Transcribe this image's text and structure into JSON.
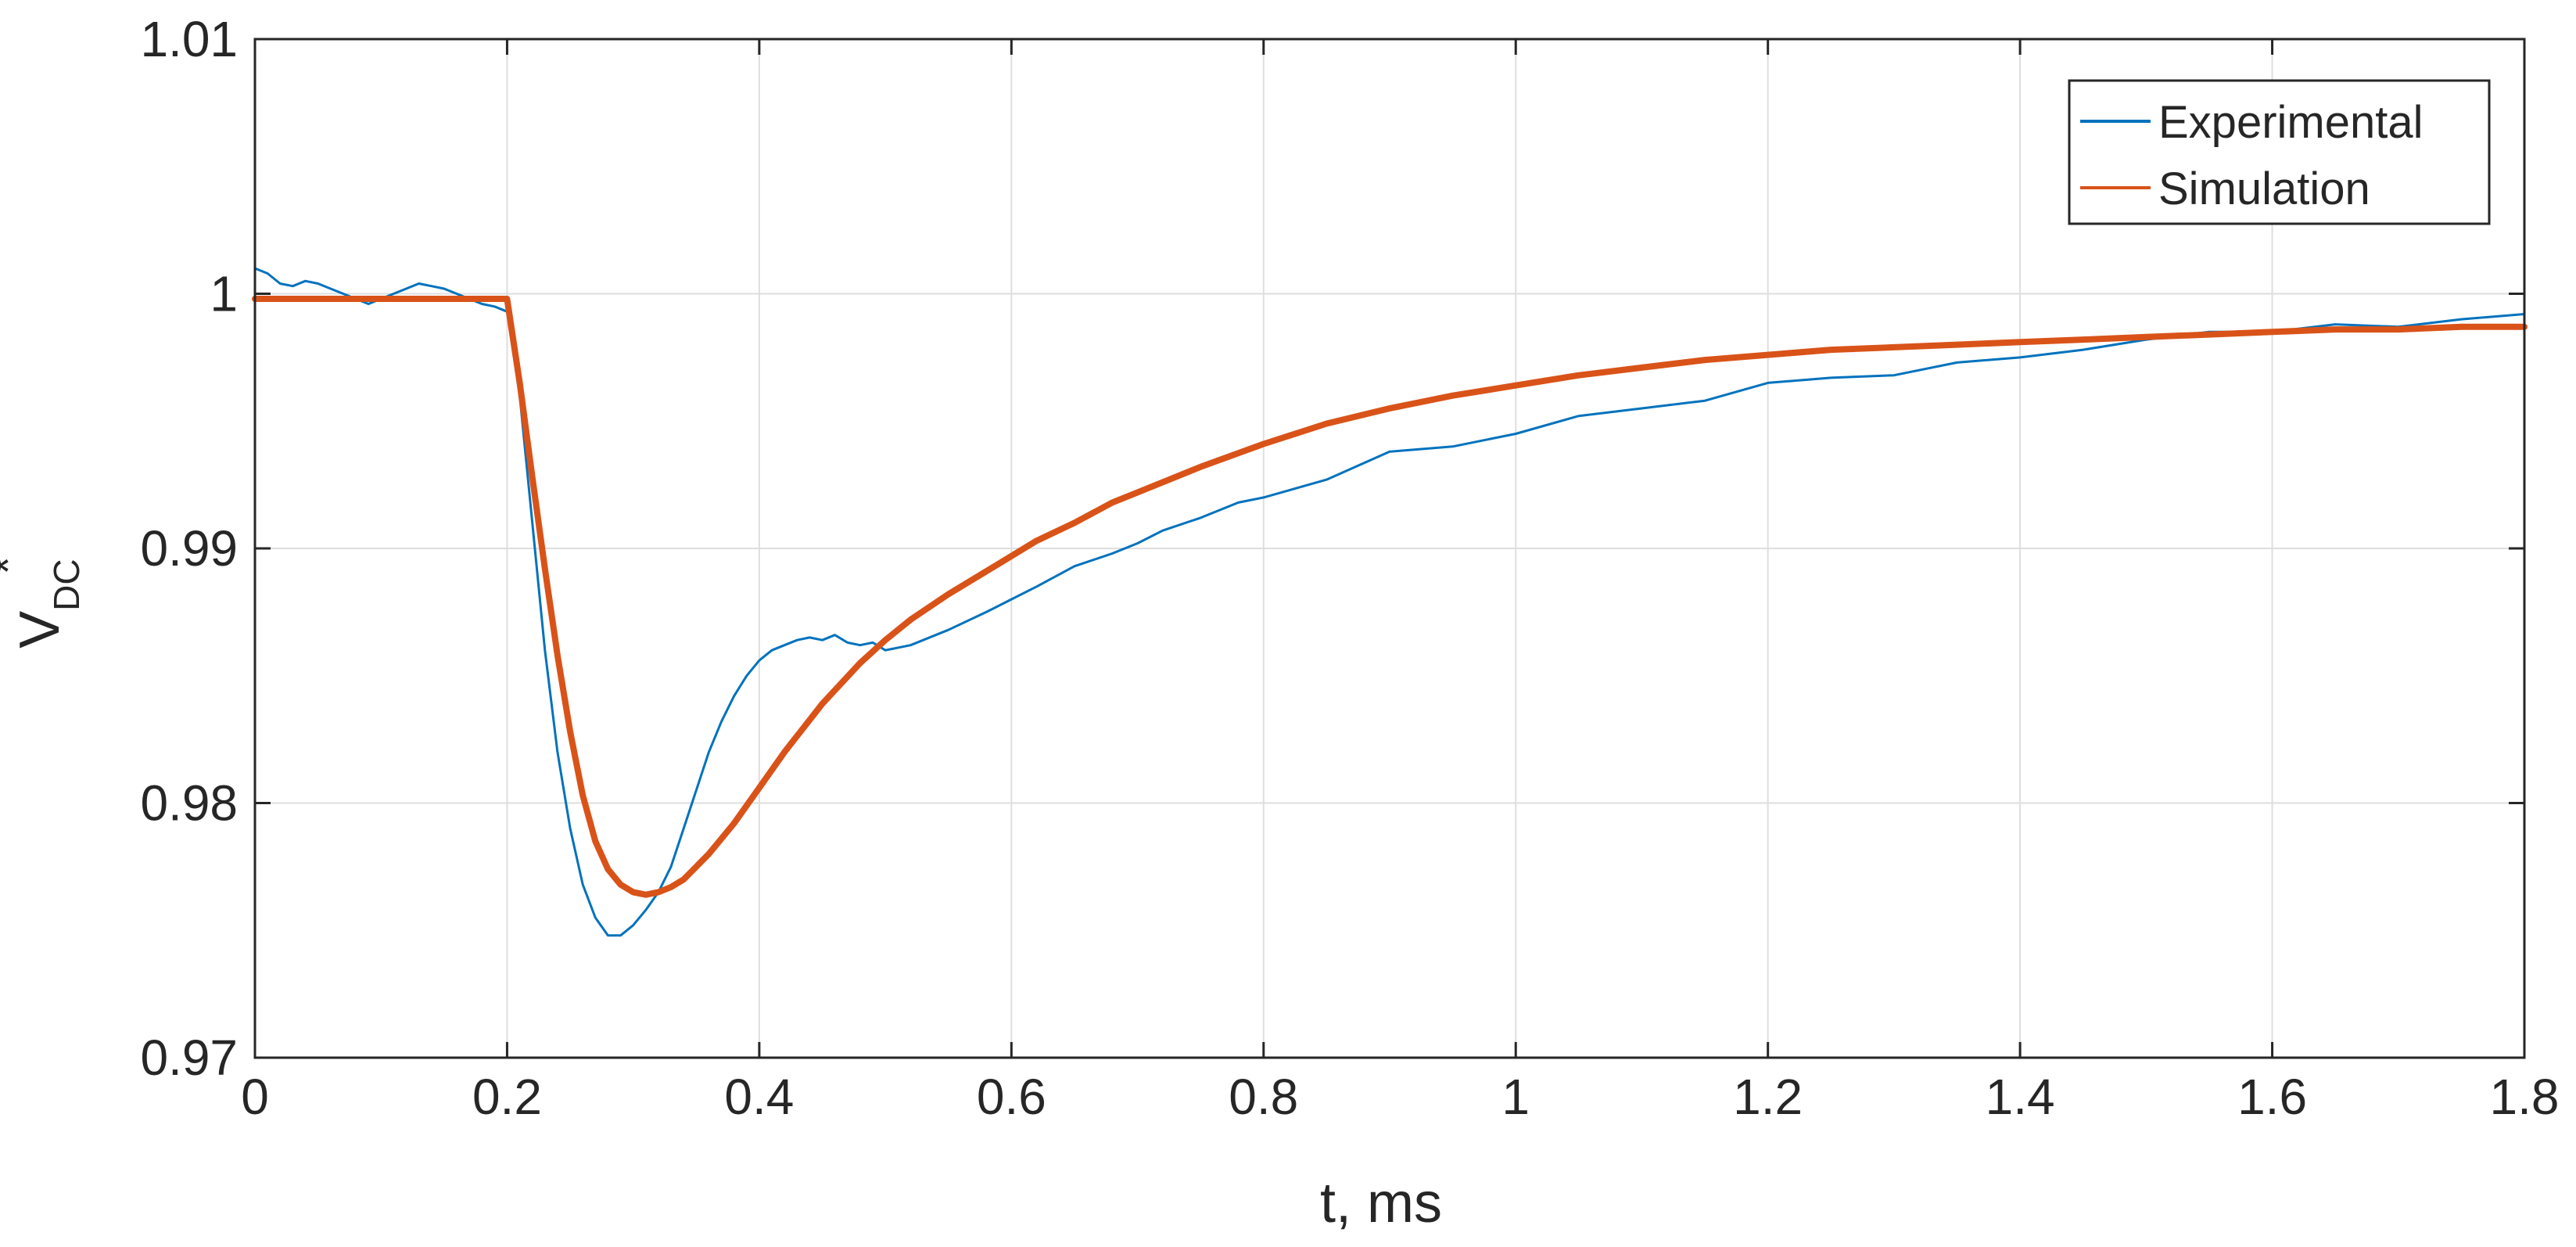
{
  "chart_data": {
    "type": "line",
    "xlabel": "t, ms",
    "ylabel": {
      "main": "V",
      "subscript": "DC",
      "superscript": "*"
    },
    "xlim": [
      0,
      1.8
    ],
    "ylim": [
      0.97,
      1.01
    ],
    "x_ticks": [
      0,
      0.2,
      0.4,
      0.6,
      0.8,
      1,
      1.2,
      1.4,
      1.6,
      1.8
    ],
    "x_tick_labels": [
      "0",
      "0.2",
      "0.4",
      "0.6",
      "0.8",
      "1",
      "1.2",
      "1.4",
      "1.6",
      "1.8"
    ],
    "y_ticks": [
      0.97,
      0.98,
      0.99,
      1,
      1.01
    ],
    "y_tick_labels": [
      "0.97",
      "0.98",
      "0.99",
      "1",
      "1.01"
    ],
    "grid": true,
    "legend": "top-right",
    "series": [
      {
        "name": "Experimental",
        "color": "#0072BD",
        "x": [
          0,
          0.01,
          0.02,
          0.03,
          0.04,
          0.05,
          0.06,
          0.07,
          0.08,
          0.09,
          0.1,
          0.11,
          0.12,
          0.13,
          0.14,
          0.15,
          0.16,
          0.17,
          0.18,
          0.19,
          0.2,
          0.21,
          0.22,
          0.23,
          0.24,
          0.25,
          0.26,
          0.27,
          0.28,
          0.29,
          0.3,
          0.31,
          0.32,
          0.33,
          0.34,
          0.35,
          0.36,
          0.37,
          0.38,
          0.39,
          0.4,
          0.41,
          0.42,
          0.43,
          0.44,
          0.45,
          0.46,
          0.47,
          0.48,
          0.49,
          0.5,
          0.52,
          0.55,
          0.58,
          0.6,
          0.62,
          0.65,
          0.68,
          0.7,
          0.72,
          0.75,
          0.78,
          0.8,
          0.85,
          0.9,
          0.95,
          1,
          1.05,
          1.1,
          1.15,
          1.2,
          1.25,
          1.3,
          1.35,
          1.4,
          1.45,
          1.5,
          1.55,
          1.6,
          1.65,
          1.7,
          1.75,
          1.8
        ],
        "y": [
          1.001,
          1.0008,
          1.0004,
          1.0003,
          1.0005,
          1.0004,
          1.0002,
          1.0,
          0.9998,
          0.9996,
          0.9998,
          1.0,
          1.0002,
          1.0004,
          1.0003,
          1.0002,
          1.0,
          0.9998,
          0.9996,
          0.9995,
          0.9993,
          0.996,
          0.991,
          0.986,
          0.982,
          0.979,
          0.9768,
          0.9755,
          0.9748,
          0.9748,
          0.9752,
          0.9758,
          0.9765,
          0.9775,
          0.979,
          0.9805,
          0.982,
          0.9832,
          0.9842,
          0.985,
          0.9856,
          0.986,
          0.9862,
          0.9864,
          0.9865,
          0.9864,
          0.9866,
          0.9863,
          0.9862,
          0.9863,
          0.986,
          0.9862,
          0.9868,
          0.9875,
          0.988,
          0.9885,
          0.9893,
          0.9898,
          0.9902,
          0.9907,
          0.9912,
          0.9918,
          0.992,
          0.9927,
          0.9938,
          0.994,
          0.9945,
          0.9952,
          0.9955,
          0.9958,
          0.9965,
          0.9967,
          0.9968,
          0.9973,
          0.9975,
          0.9978,
          0.9982,
          0.9985,
          0.9985,
          0.9988,
          0.9987,
          0.999,
          0.9992
        ]
      },
      {
        "name": "Simulation",
        "color": "#D95319",
        "x": [
          0,
          0.1,
          0.199,
          0.2,
          0.21,
          0.22,
          0.23,
          0.24,
          0.25,
          0.26,
          0.27,
          0.28,
          0.29,
          0.3,
          0.31,
          0.32,
          0.33,
          0.34,
          0.35,
          0.36,
          0.38,
          0.4,
          0.42,
          0.45,
          0.48,
          0.5,
          0.52,
          0.55,
          0.58,
          0.6,
          0.62,
          0.65,
          0.68,
          0.7,
          0.75,
          0.8,
          0.85,
          0.9,
          0.95,
          1,
          1.05,
          1.1,
          1.15,
          1.2,
          1.25,
          1.3,
          1.35,
          1.4,
          1.45,
          1.5,
          1.55,
          1.6,
          1.65,
          1.7,
          1.75,
          1.8
        ],
        "y": [
          0.9998,
          0.9998,
          0.9998,
          0.9998,
          0.9965,
          0.9928,
          0.9892,
          0.9858,
          0.9828,
          0.9803,
          0.9785,
          0.9774,
          0.9768,
          0.9765,
          0.9764,
          0.9765,
          0.9767,
          0.977,
          0.9775,
          0.978,
          0.9792,
          0.9806,
          0.982,
          0.9839,
          0.9855,
          0.9864,
          0.9872,
          0.9882,
          0.9891,
          0.9897,
          0.9903,
          0.991,
          0.9918,
          0.9922,
          0.9932,
          0.9941,
          0.9949,
          0.9955,
          0.996,
          0.9964,
          0.9968,
          0.9971,
          0.9974,
          0.9976,
          0.9978,
          0.9979,
          0.998,
          0.9981,
          0.9982,
          0.9983,
          0.9984,
          0.9985,
          0.9986,
          0.9986,
          0.9987,
          0.9987
        ]
      }
    ]
  }
}
